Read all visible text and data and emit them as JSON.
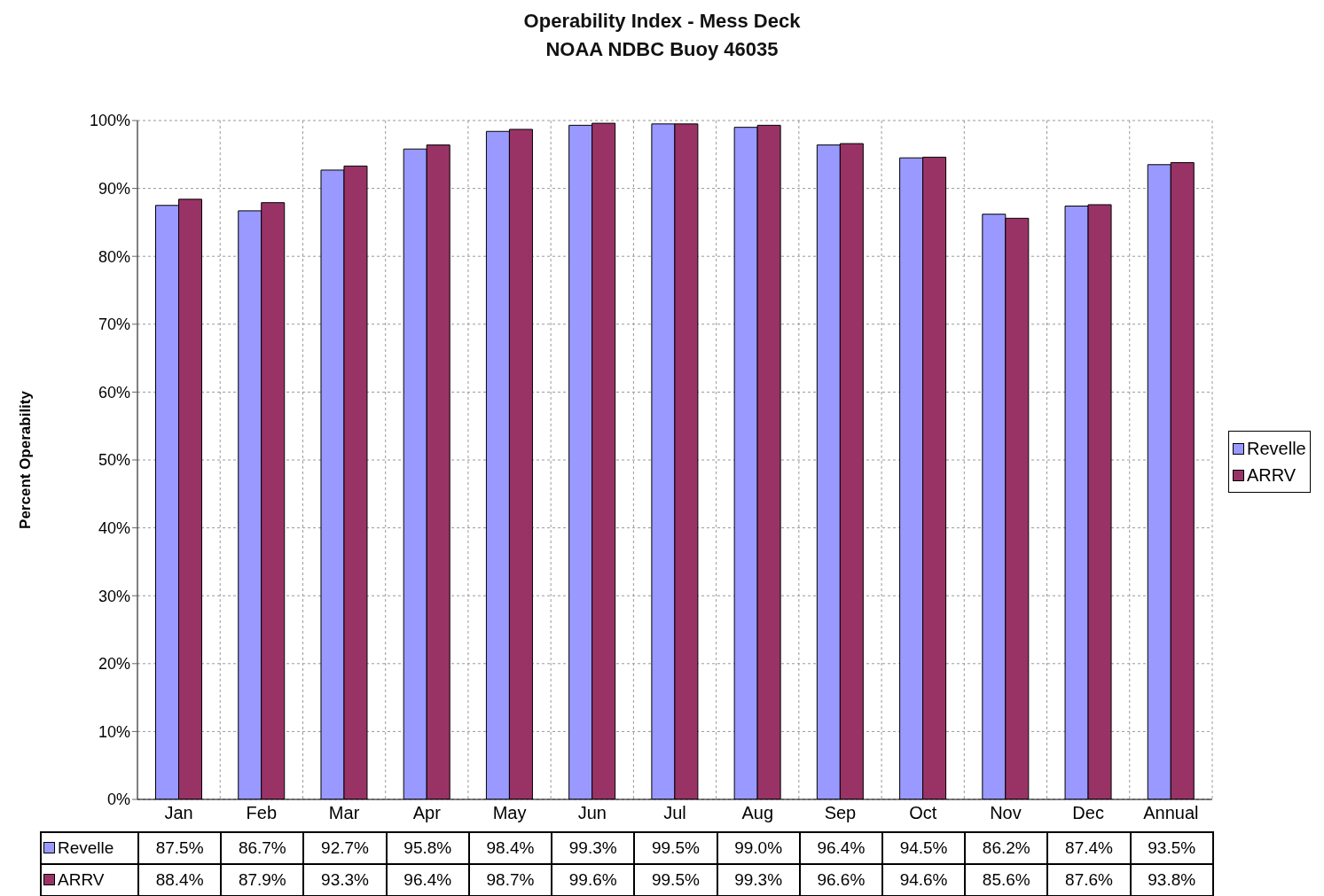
{
  "chart_data": {
    "type": "bar",
    "title": "Operability Index - Mess Deck",
    "subtitle": "NOAA NDBC Buoy 46035",
    "ylabel": "Percent Operability",
    "categories": [
      "Jan",
      "Feb",
      "Mar",
      "Apr",
      "May",
      "Jun",
      "Jul",
      "Aug",
      "Sep",
      "Oct",
      "Nov",
      "Dec",
      "Annual"
    ],
    "series": [
      {
        "name": "Revelle",
        "color": "#9999ff",
        "values": [
          87.5,
          86.7,
          92.7,
          95.8,
          98.4,
          99.3,
          99.5,
          99.0,
          96.4,
          94.5,
          86.2,
          87.4,
          93.5
        ],
        "value_labels": [
          "87.5%",
          "86.7%",
          "92.7%",
          "95.8%",
          "98.4%",
          "99.3%",
          "99.5%",
          "99.0%",
          "96.4%",
          "94.5%",
          "86.2%",
          "87.4%",
          "93.5%"
        ]
      },
      {
        "name": "ARRV",
        "color": "#993366",
        "values": [
          88.4,
          87.9,
          93.3,
          96.4,
          98.7,
          99.6,
          99.5,
          99.3,
          96.6,
          94.6,
          85.6,
          87.6,
          93.8
        ],
        "value_labels": [
          "88.4%",
          "87.9%",
          "93.3%",
          "96.4%",
          "98.7%",
          "99.6%",
          "99.5%",
          "99.3%",
          "96.6%",
          "94.6%",
          "85.6%",
          "87.6%",
          "93.8%"
        ]
      }
    ],
    "ylim": [
      0,
      100
    ],
    "yticks": [
      {
        "value": 0,
        "label": "0%"
      },
      {
        "value": 10,
        "label": "10%"
      },
      {
        "value": 20,
        "label": "20%"
      },
      {
        "value": 30,
        "label": "30%"
      },
      {
        "value": 40,
        "label": "40%"
      },
      {
        "value": 50,
        "label": "50%"
      },
      {
        "value": 60,
        "label": "60%"
      },
      {
        "value": 70,
        "label": "70%"
      },
      {
        "value": 80,
        "label": "80%"
      },
      {
        "value": 90,
        "label": "90%"
      },
      {
        "value": 100,
        "label": "100%"
      }
    ],
    "grid": true,
    "legend": "right"
  }
}
